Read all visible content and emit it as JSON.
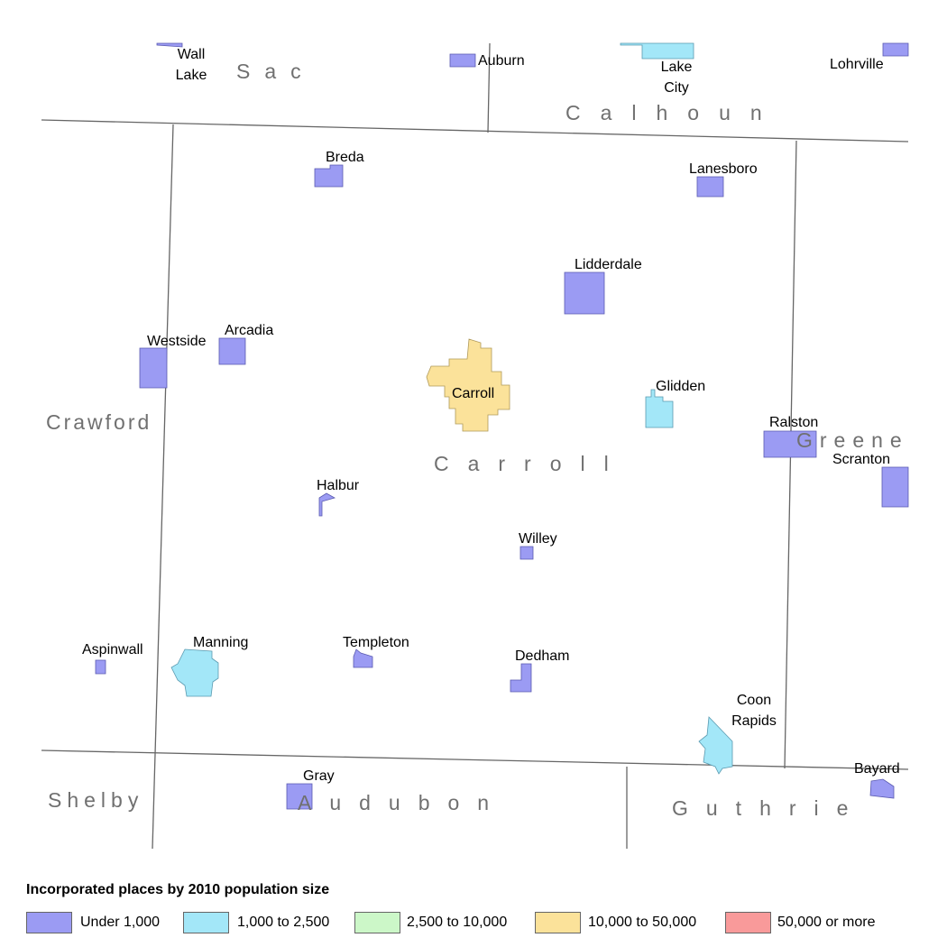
{
  "counties": [
    "Sac",
    "Calhoun",
    "Crawford",
    "Carroll",
    "Greene",
    "Shelby",
    "Audubon",
    "Guthrie"
  ],
  "places": [
    "Wall Lake",
    "Auburn",
    "Lake City",
    "Lohrville",
    "Breda",
    "Lanesboro",
    "Lidderdale",
    "Westside",
    "Arcadia",
    "Carroll",
    "Glidden",
    "Ralston",
    "Scranton",
    "Halbur",
    "Willey",
    "Aspinwall",
    "Manning",
    "Templeton",
    "Dedham",
    "Coon Rapids",
    "Gray",
    "Bayard"
  ],
  "legend": {
    "title": "Incorporated places by 2010 population size",
    "items": [
      "Under 1,000",
      "1,000 to 2,500",
      "2,500 to 10,000",
      "10,000 to 50,000",
      "50,000 or more"
    ]
  }
}
